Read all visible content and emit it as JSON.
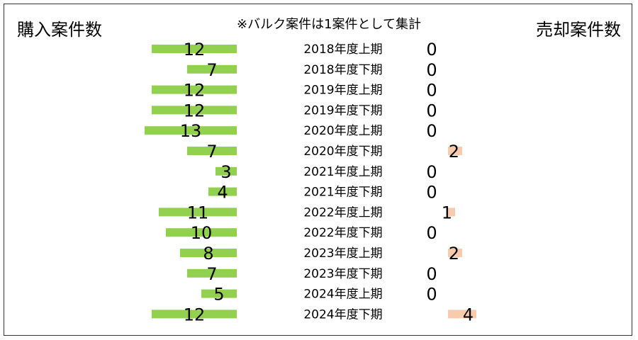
{
  "header": {
    "left_title": "購入案件数",
    "note": "※バルク案件は1案件として集計",
    "right_title": "売却案件数"
  },
  "chart_data": {
    "type": "bar",
    "categories": [
      "2018年度上期",
      "2018年度下期",
      "2019年度上期",
      "2019年度下期",
      "2020年度上期",
      "2020年度下期",
      "2021年度上期",
      "2021年度下期",
      "2022年度上期",
      "2022年度下期",
      "2023年度上期",
      "2023年度下期",
      "2024年度上期",
      "2024年度下期"
    ],
    "series": [
      {
        "name": "購入案件数",
        "values": [
          12,
          7,
          12,
          12,
          13,
          7,
          3,
          4,
          11,
          10,
          8,
          7,
          5,
          12
        ],
        "color": "#92d050"
      },
      {
        "name": "売却案件数",
        "values": [
          0,
          0,
          0,
          0,
          0,
          2,
          0,
          0,
          1,
          0,
          2,
          0,
          0,
          4
        ],
        "color": "#f8cbad"
      }
    ]
  }
}
